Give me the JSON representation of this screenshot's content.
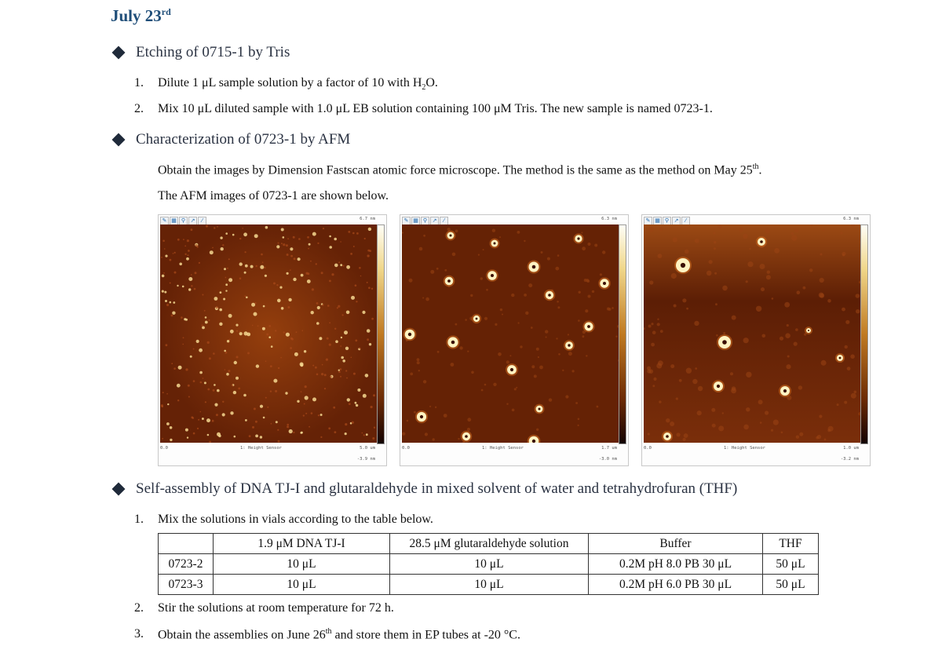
{
  "title": {
    "main": "July 23",
    "sup": "rd"
  },
  "sections": [
    {
      "label": "Etching of 0715-1 by Tris"
    },
    {
      "label": "Characterization of 0723-1 by AFM"
    },
    {
      "label": "Self-assembly of DNA TJ-I and glutaraldehyde in mixed solvent of water and tetrahydrofuran (THF)"
    }
  ],
  "etching": {
    "step1": {
      "num": "1.",
      "text_a": "Dilute 1 μL sample solution by a factor of 10 with H",
      "sub": "2",
      "text_b": "O."
    },
    "step2": {
      "num": "2.",
      "text": "Mix 10 μL diluted sample with 1.0 μL EB solution containing 100 μM Tris. The new sample is named 0723-1."
    }
  },
  "afm": {
    "para1_a": "Obtain the images by Dimension Fastscan atomic force microscope. The method is the same as the method on May 25",
    "para1_sup": "th",
    "para1_b": ".",
    "para2": "The AFM images of 0723-1 are shown below.",
    "panels": [
      {
        "top_value": "6.7 nm",
        "origin": "0.0",
        "channel": "1: Height Sensor",
        "scan": "5.0 um",
        "bottom_value": "-3.9 nm"
      },
      {
        "top_value": "6.3 nm",
        "origin": "0.0",
        "channel": "1: Height Sensor",
        "scan": "1.7 um",
        "bottom_value": "-3.0 nm"
      },
      {
        "top_value": "6.3 nm",
        "origin": "0.0",
        "channel": "1: Height Sensor",
        "scan": "1.0 um",
        "bottom_value": "-3.2 nm"
      }
    ]
  },
  "assembly": {
    "step1": {
      "num": "1.",
      "text": "Mix the solutions in vials according to the table below."
    },
    "table": {
      "headers": [
        "",
        "1.9 μM DNA TJ-I",
        "28.5 μM glutaraldehyde solution",
        "Buffer",
        "THF"
      ],
      "rows": [
        [
          "0723-2",
          "10 μL",
          "10 μL",
          "0.2M pH 8.0 PB 30 μL",
          "50 μL"
        ],
        [
          "0723-3",
          "10 μL",
          "10 μL",
          "0.2M pH 6.0 PB 30 μL",
          "50 μL"
        ]
      ]
    },
    "step2": {
      "num": "2.",
      "text": "Stir the solutions at room temperature for 72 h."
    },
    "step3": {
      "num": "3.",
      "text_a": "Obtain the assemblies on June 26",
      "sup": "th",
      "text_b": " and store them in EP tubes at -20 °C."
    }
  },
  "colors": {
    "title": "#1f4e79",
    "afm_dark": "#4a1503",
    "afm_mid": "#8a3a0c",
    "afm_bright": "#fff3c2"
  }
}
